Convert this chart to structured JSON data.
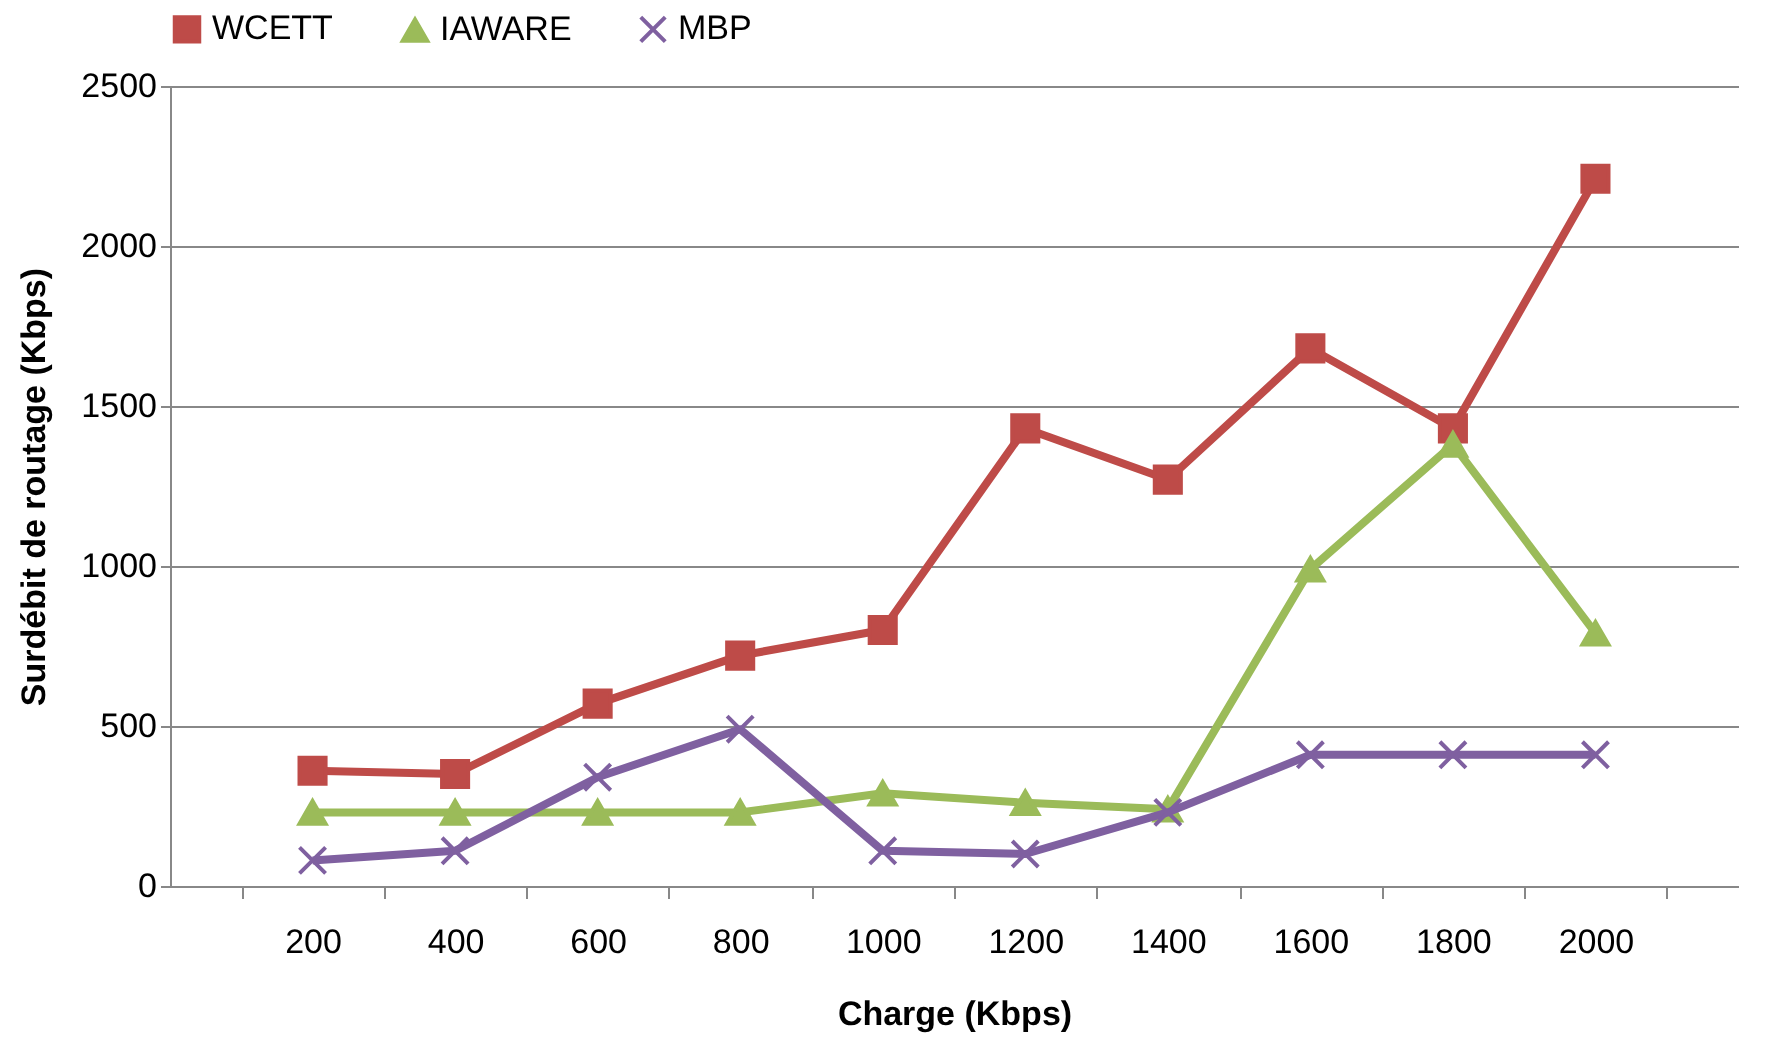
{
  "chart_data": {
    "type": "line",
    "xlabel": "Charge (Kbps)",
    "ylabel": "Surdébit de routage (Kbps)",
    "categories": [
      "200",
      "400",
      "600",
      "800",
      "1000",
      "1200",
      "1400",
      "1600",
      "1800",
      "2000"
    ],
    "series": [
      {
        "name": "WCETT",
        "color": "#be4b48",
        "marker": "square",
        "values": [
          360,
          350,
          570,
          720,
          800,
          1430,
          1270,
          1680,
          1430,
          2210
        ]
      },
      {
        "name": "IAWARE",
        "color": "#9bbb59",
        "marker": "triangle",
        "values": [
          230,
          230,
          230,
          230,
          290,
          260,
          240,
          990,
          1380,
          790
        ]
      },
      {
        "name": "MBP",
        "color": "#7f60a0",
        "marker": "cross",
        "values": [
          80,
          110,
          340,
          490,
          110,
          100,
          230,
          410,
          410,
          410
        ]
      }
    ],
    "ylim": [
      0,
      2500
    ],
    "yticks": [
      0,
      500,
      1000,
      1500,
      2000,
      2500
    ],
    "grid": "y",
    "legend": "top",
    "line_style": "solid"
  }
}
